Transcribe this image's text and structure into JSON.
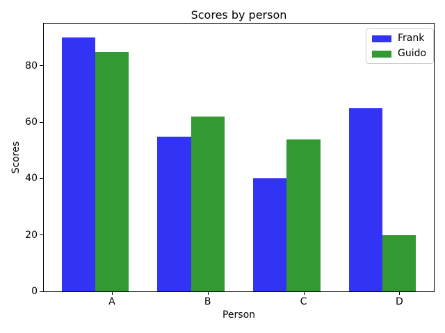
{
  "chart_data": {
    "type": "bar",
    "title": "Scores by person",
    "xlabel": "Person",
    "ylabel": "Scores",
    "categories": [
      "A",
      "B",
      "C",
      "D"
    ],
    "series": [
      {
        "name": "Frank",
        "color": "#3333f5",
        "values": [
          90,
          55,
          40,
          65
        ]
      },
      {
        "name": "Guido",
        "color": "#339933",
        "values": [
          85,
          62,
          54,
          20
        ]
      }
    ],
    "yticks": [
      0,
      20,
      40,
      60,
      80
    ],
    "ylim": [
      0,
      95
    ],
    "grid": false,
    "legend_position": "upper right",
    "axis_color": "#000000",
    "background_color": "#ffffff"
  }
}
